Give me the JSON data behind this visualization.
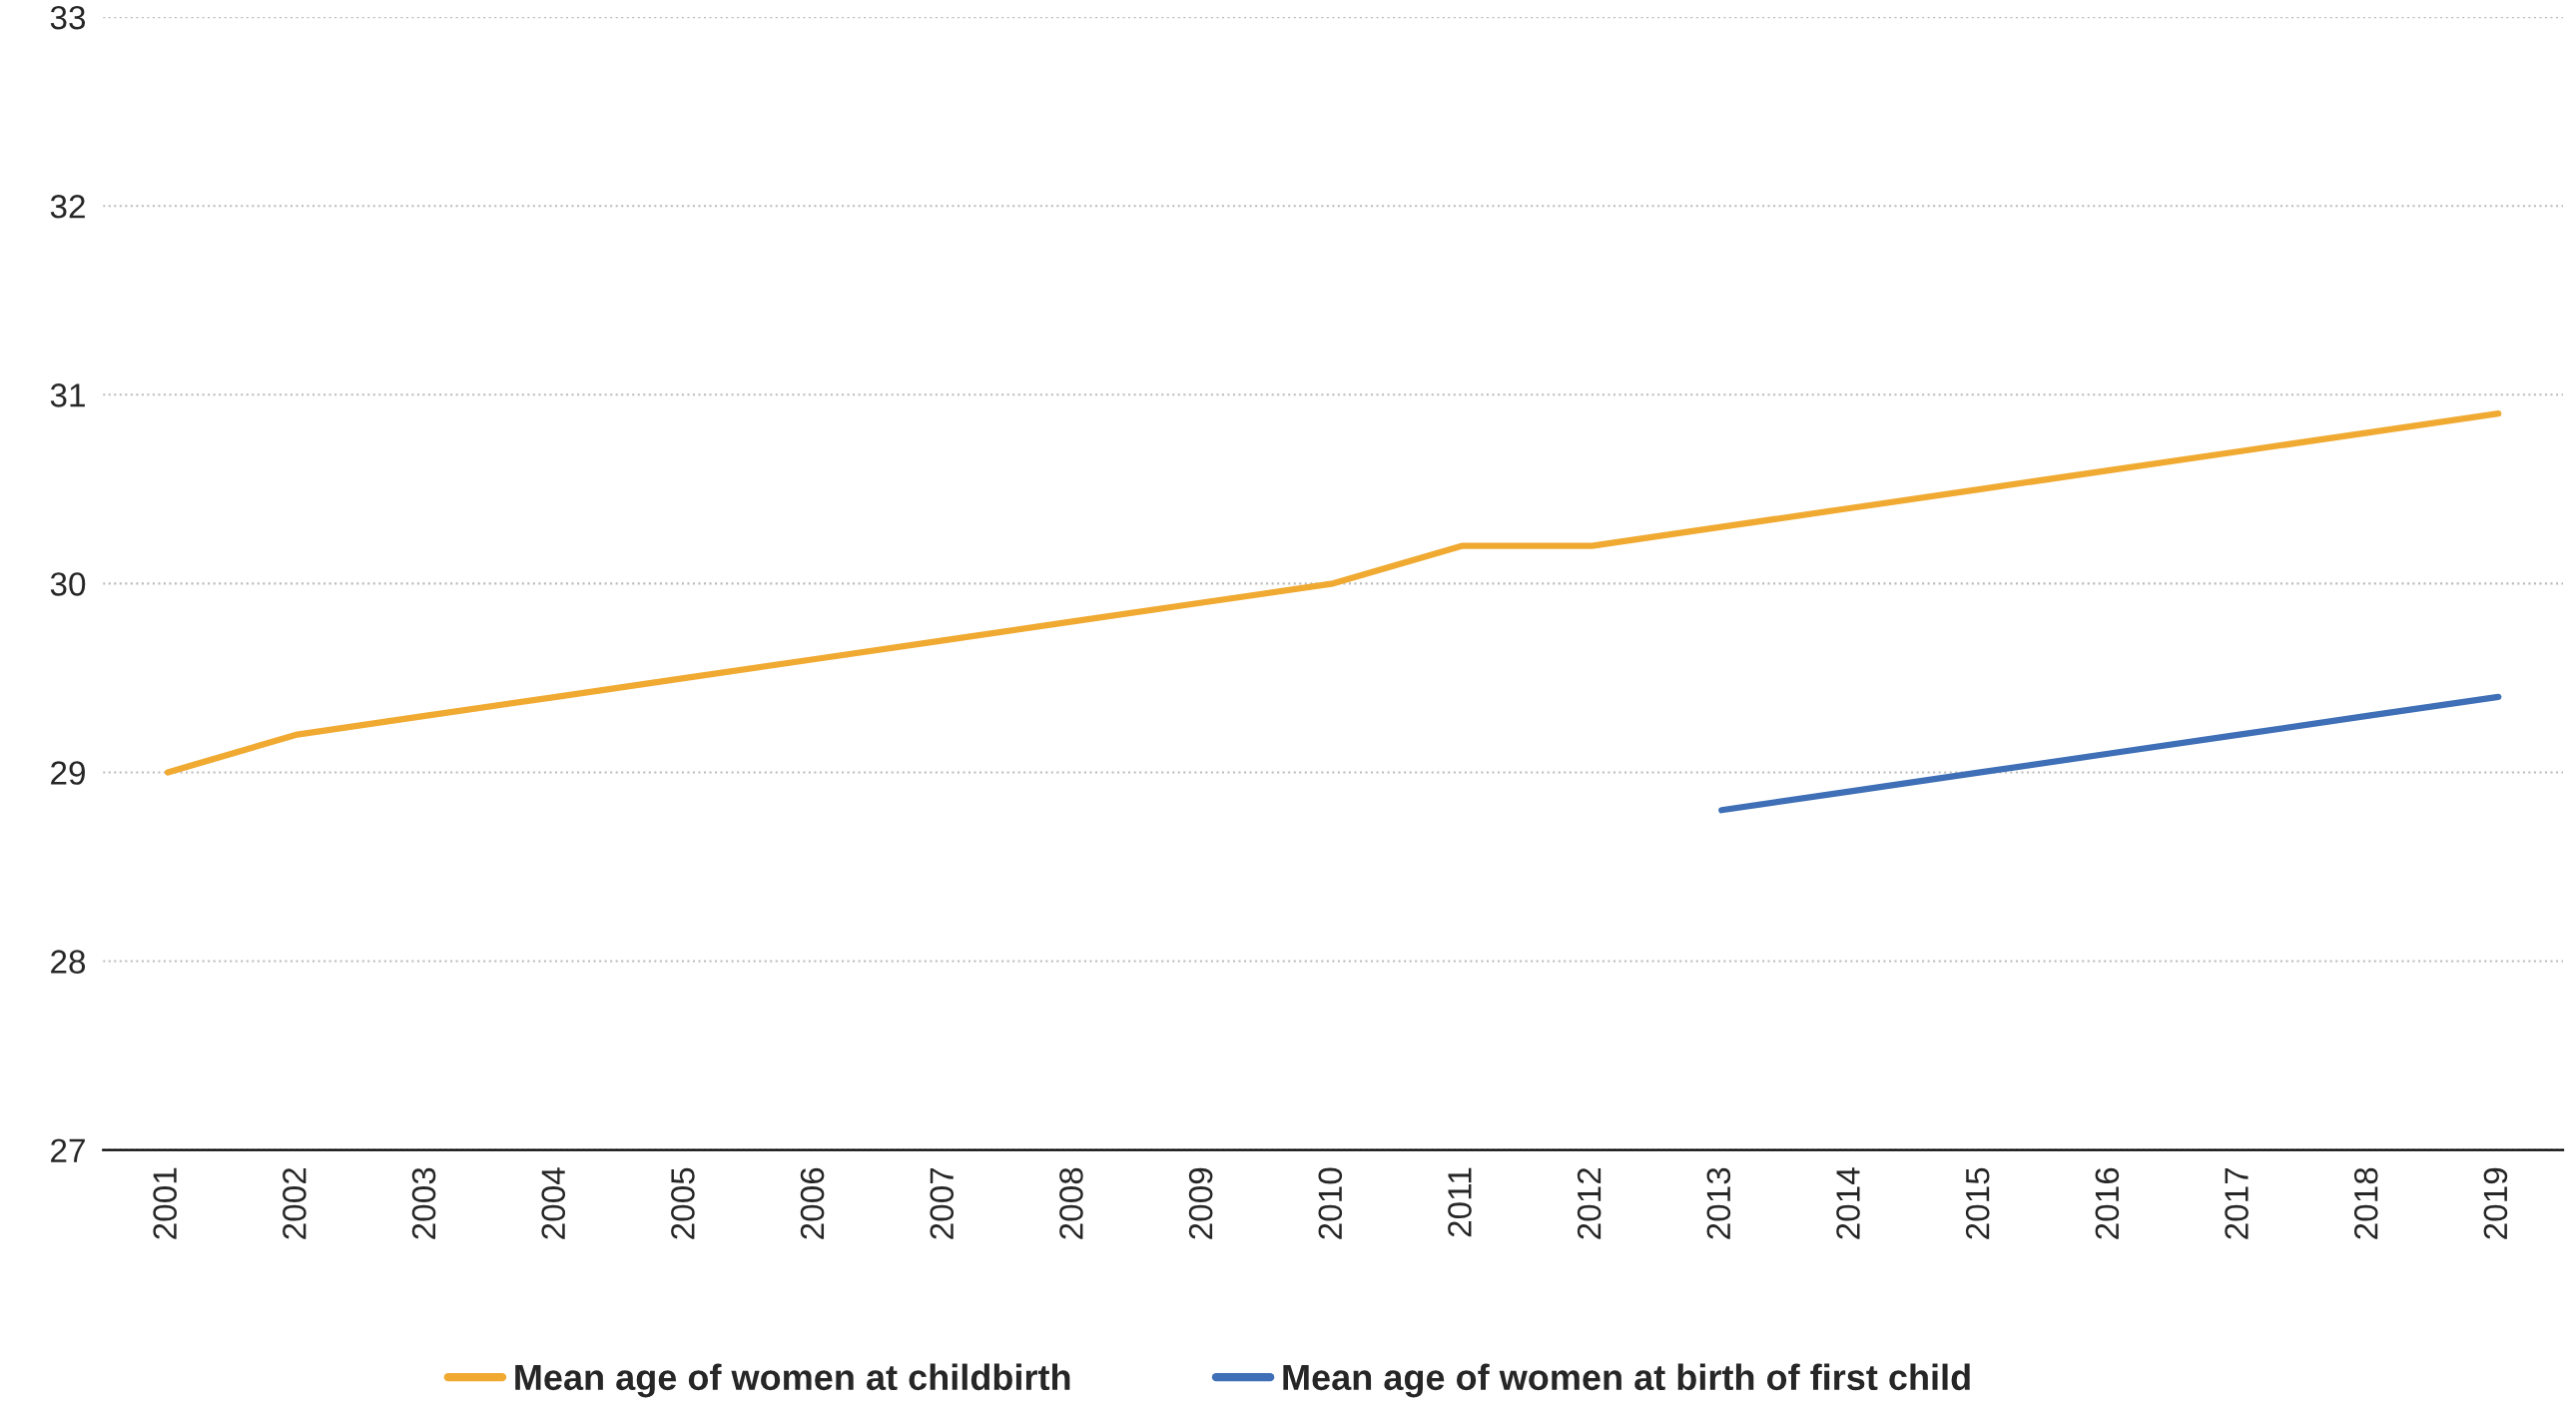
{
  "chart_data": {
    "type": "line",
    "categories": [
      "2001",
      "2002",
      "2003",
      "2004",
      "2005",
      "2006",
      "2007",
      "2008",
      "2009",
      "2010",
      "2011",
      "2012",
      "2013",
      "2014",
      "2015",
      "2016",
      "2017",
      "2018",
      "2019"
    ],
    "series": [
      {
        "name": "Mean age of women at childbirth",
        "color": "#f0aa32",
        "values": [
          29.0,
          29.2,
          29.3,
          29.4,
          29.5,
          29.6,
          29.7,
          29.8,
          29.9,
          30.0,
          30.2,
          30.2,
          30.3,
          30.4,
          30.5,
          30.6,
          30.7,
          30.8,
          30.9
        ]
      },
      {
        "name": "Mean age of women at birth of first child",
        "color": "#3f6fb6",
        "values": [
          null,
          null,
          null,
          null,
          null,
          null,
          null,
          null,
          null,
          null,
          null,
          null,
          28.8,
          28.9,
          29.0,
          29.1,
          29.2,
          29.3,
          29.4
        ]
      }
    ],
    "ylim": [
      27,
      33
    ],
    "yticks": [
      27,
      28,
      29,
      30,
      31,
      32,
      33
    ],
    "grid": "y",
    "legend": "bottom",
    "marker": "none",
    "line_style": "solid"
  }
}
